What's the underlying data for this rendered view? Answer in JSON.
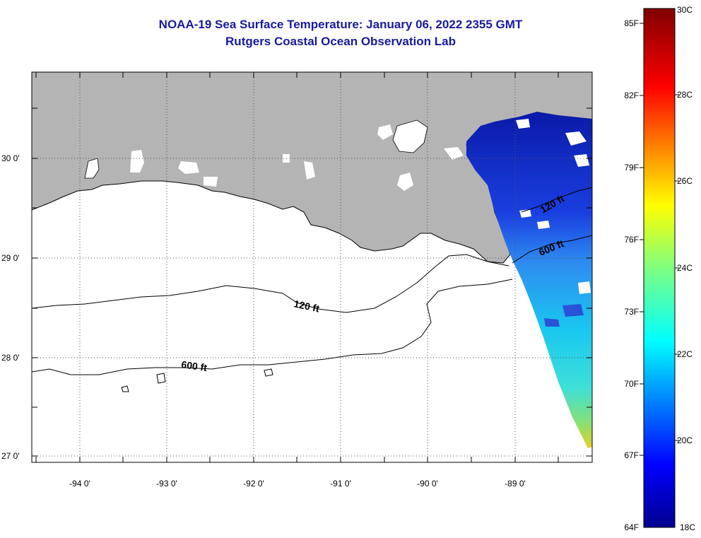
{
  "title": {
    "line1": "NOAA-19 Sea Surface Temperature:  January 06, 2022 2355 GMT",
    "line2": "Rutgers Coastal Ocean Observation Lab"
  },
  "map": {
    "lon_labels": [
      "-94 0'",
      "-93 0'",
      "-92 0'",
      "-91 0'",
      "-90 0'",
      "-89 0'"
    ],
    "lat_labels": [
      "30 0'",
      "29 0'",
      "28 0'",
      "27 0'"
    ],
    "contour_labels": [
      "120 ft",
      "600 ft",
      "120 ft",
      "600 ft"
    ]
  },
  "colorbar": {
    "fahrenheit_labels": [
      "85F",
      "82F",
      "79F",
      "76F",
      "73F",
      "70F",
      "67F",
      "64F"
    ],
    "celsius_labels": [
      "30C",
      "28C",
      "26C",
      "24C",
      "22C",
      "20C",
      "18C"
    ]
  },
  "colors": {
    "title": "#1a1a9e",
    "land": "#b4b4b4",
    "ocean": "#ffffff",
    "sst_cold": "#000080",
    "sst_warm": "#800000"
  }
}
